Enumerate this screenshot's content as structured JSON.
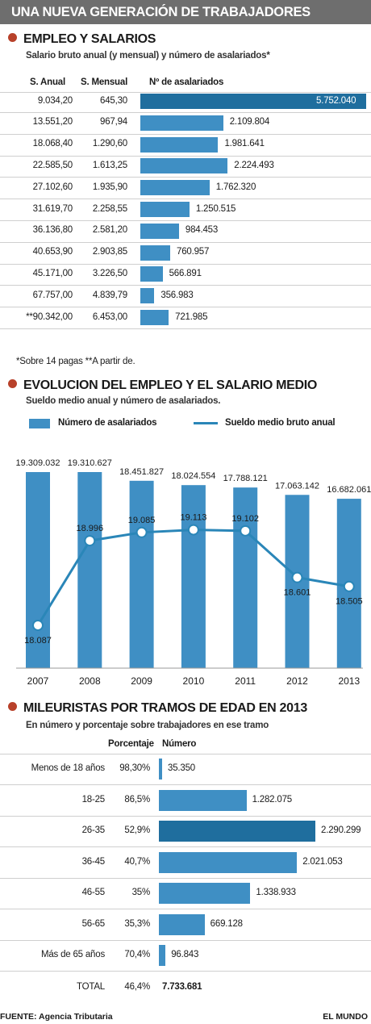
{
  "header": {
    "title": "UNA NUEVA GENERACIÓN DE TRABAJADORES"
  },
  "section1": {
    "title": "EMPLEO Y SALARIOS",
    "subtitle": "Salario bruto anual (y mensual) y número de asalariados*",
    "col_anual": "S. Anual",
    "col_mensual": "S. Mensual",
    "col_asalariados": "Nº de asalariados",
    "note": "*Sobre 14 pagas **A partir de."
  },
  "section2": {
    "title": "EVOLUCION DEL EMPLEO Y EL SALARIO MEDIO",
    "subtitle": "Sueldo medio anual y número de asalariados.",
    "legend_bars": "Número de asalariados",
    "legend_line": "Sueldo medio bruto anual"
  },
  "section3": {
    "title": "MILEURISTAS POR TRAMOS DE EDAD EN 2013",
    "subtitle": "En número y porcentaje sobre trabajadores en ese tramo",
    "col_pct": "Porcentaje",
    "col_num": "Número",
    "total_label": "TOTAL",
    "total_pct": "46,4%",
    "total_num": "7.733.681"
  },
  "footer": {
    "source": "FUENTE: Agencia Tributaria",
    "brand": "EL MUNDO"
  },
  "colors": {
    "bar": "#3f8fc4",
    "highlight": "#1f6e9e",
    "line": "#2a86b8",
    "dot": "#b8412a",
    "header": "#6e6e6e"
  },
  "chart_data": [
    {
      "type": "bar",
      "title": "EMPLEO Y SALARIOS",
      "orientation": "horizontal",
      "categories": [
        "9.034,20",
        "13.551,20",
        "18.068,40",
        "22.585,50",
        "27.102,60",
        "31.619,70",
        "36.136,80",
        "40.653,90",
        "45.171,00",
        "67.757,00",
        "**90.342,00"
      ],
      "mensual": [
        "645,30",
        "967,94",
        "1.290,60",
        "1.613,25",
        "1.935,90",
        "2.258,55",
        "2.581,20",
        "2.903,85",
        "3.226,50",
        "4.839,79",
        "6.453,00"
      ],
      "values": [
        5752040,
        2109804,
        1981641,
        2224493,
        1762320,
        1250515,
        984453,
        760957,
        566891,
        356983,
        721985
      ],
      "labels": [
        "5.752.040",
        "2.109.804",
        "1.981.641",
        "2.224.493",
        "1.762.320",
        "1.250.515",
        "984.453",
        "760.957",
        "566.891",
        "356.983",
        "721.985"
      ],
      "highlight": 0
    },
    {
      "type": "bar",
      "title": "EVOLUCION DEL EMPLEO Y EL SALARIO MEDIO",
      "categories": [
        "2007",
        "2008",
        "2009",
        "2010",
        "2011",
        "2012",
        "2013"
      ],
      "series": [
        {
          "name": "Número de asalariados",
          "type": "bar",
          "values": [
            19309032,
            19310627,
            18451827,
            18024554,
            17788121,
            17063142,
            16682061
          ],
          "labels": [
            "19.309.032",
            "19.310.627",
            "18.451.827",
            "18.024.554",
            "17.788.121",
            "17.063.142",
            "16.682.061"
          ]
        },
        {
          "name": "Sueldo medio bruto anual",
          "type": "line",
          "values": [
            18087,
            18996,
            19085,
            19113,
            19102,
            18601,
            18505
          ],
          "labels": [
            "18.087",
            "18.996",
            "19.085",
            "19.113",
            "19.102",
            "18.601",
            "18.505"
          ]
        }
      ],
      "legend": "top"
    },
    {
      "type": "bar",
      "title": "MILEURISTAS POR TRAMOS DE EDAD EN 2013",
      "orientation": "horizontal",
      "categories": [
        "Menos de 18 años",
        "18-25",
        "26-35",
        "36-45",
        "46-55",
        "56-65",
        "Más de 65 años"
      ],
      "percentages": [
        "98,30%",
        "86,5%",
        "52,9%",
        "40,7%",
        "35%",
        "35,3%",
        "70,4%"
      ],
      "values": [
        35350,
        1282075,
        2290299,
        2021053,
        1338933,
        669128,
        96843
      ],
      "labels": [
        "35.350",
        "1.282.075",
        "2.290.299",
        "2.021.053",
        "1.338.933",
        "669.128",
        "96.843"
      ],
      "highlight": 2
    }
  ]
}
